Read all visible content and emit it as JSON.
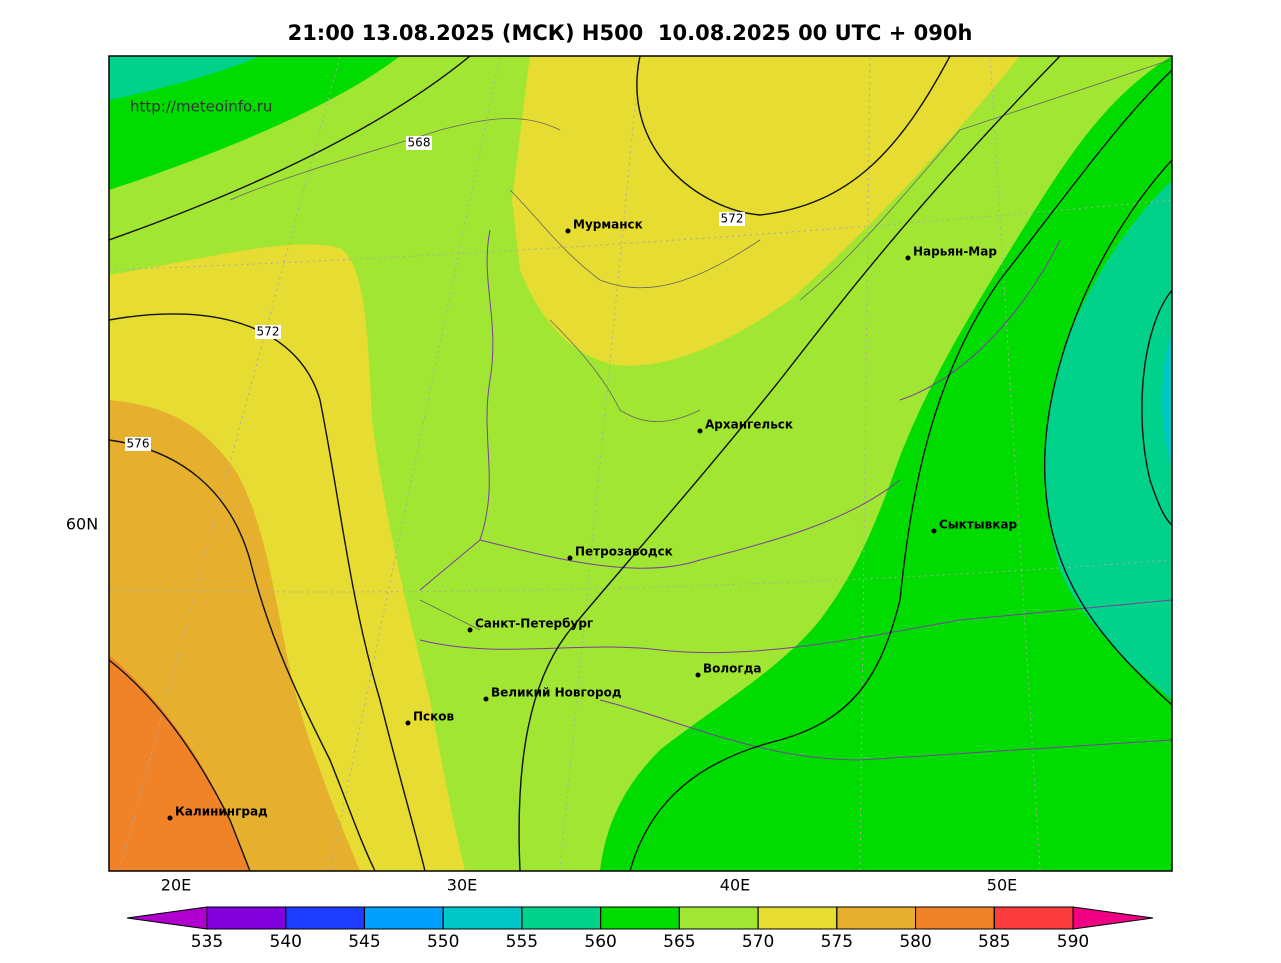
{
  "title": "21:00 13.08.2025 (МСК) H500  10.08.2025 00 UTC + 090h",
  "watermark": "http://meteoinfo.ru",
  "contour_labels": [
    568,
    572,
    572,
    576
  ],
  "cities": [
    "Мурманск",
    "Нарьян-Мар",
    "Архангельск",
    "Сыктывкар",
    "Петрозаводск",
    "Санкт-Петербург",
    "Вологда",
    "Великий Новгород",
    "Псков",
    "Калининград"
  ],
  "lat_labels": [
    "60N"
  ],
  "lon_labels": [
    "20E",
    "30E",
    "40E",
    "50E"
  ],
  "colorbar": {
    "ticks": [
      535,
      540,
      545,
      550,
      555,
      560,
      565,
      570,
      575,
      580,
      585,
      590
    ],
    "colors": [
      "#b000d0",
      "#8200dc",
      "#1e3cff",
      "#00a0ff",
      "#00c8c8",
      "#00d28c",
      "#00dc00",
      "#a0e632",
      "#e6dc32",
      "#e6af2d",
      "#f08228",
      "#fa3c3c",
      "#f00082"
    ]
  }
}
